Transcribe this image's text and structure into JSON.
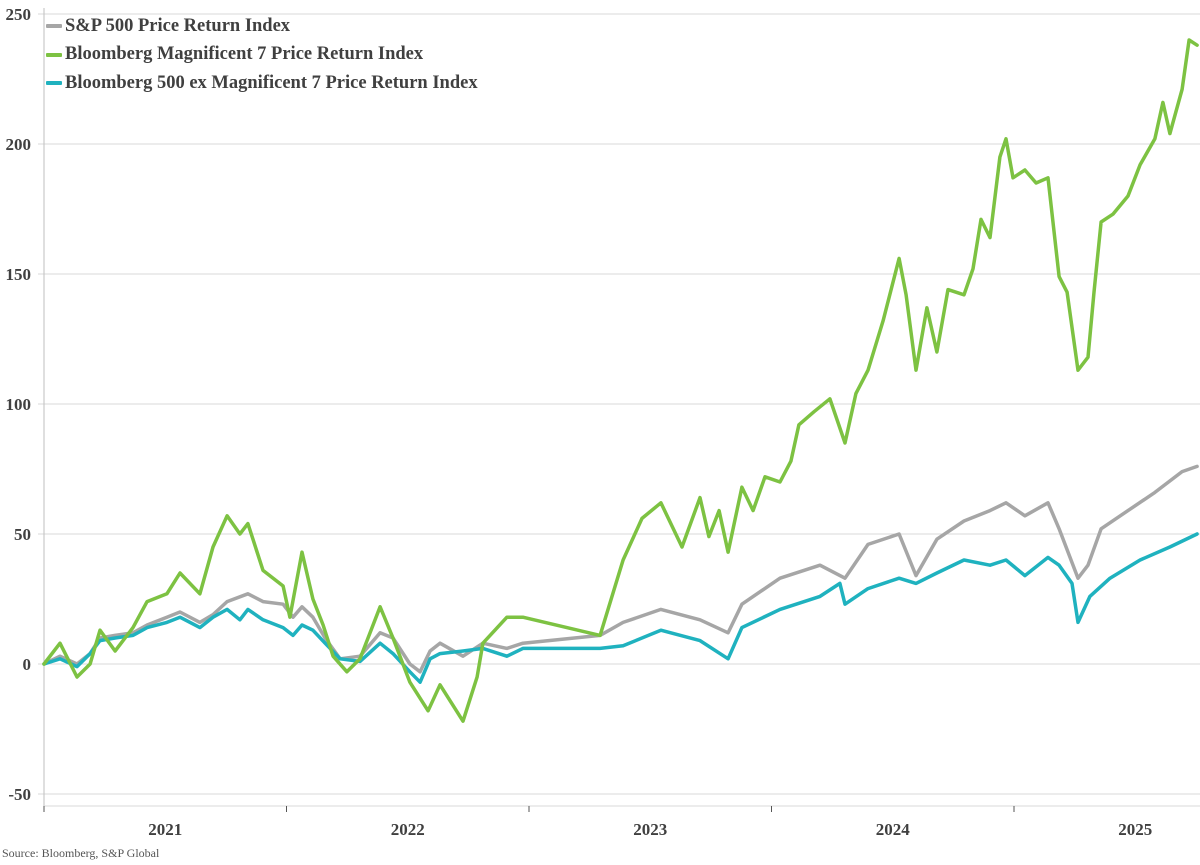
{
  "chart_data": {
    "type": "line",
    "title": "",
    "xlabel": "",
    "ylabel": "",
    "xlim": [
      2021.0,
      2025.78
    ],
    "ylim": [
      -50,
      250
    ],
    "yticks": [
      -50,
      0,
      50,
      100,
      150,
      200,
      250
    ],
    "xticks": [
      2021,
      2022,
      2023,
      2024,
      2025,
      2026
    ],
    "xtick_labels": [
      "2021",
      "2022",
      "2023",
      "2024",
      "2025"
    ],
    "ytick_labels": [
      "-50",
      "0",
      "50",
      "100",
      "150",
      "200",
      "250"
    ],
    "grid": "horizontal",
    "legend_position": "top-left",
    "series": [
      {
        "name": "S&P 500 Price Return Index",
        "color": "#a6a6a6",
        "points": [
          [
            2021.0,
            0
          ],
          [
            2021.066,
            3
          ],
          [
            2021.136,
            0
          ],
          [
            2021.19,
            4
          ],
          [
            2021.231,
            10
          ],
          [
            2021.293,
            11
          ],
          [
            2021.367,
            12
          ],
          [
            2021.425,
            15
          ],
          [
            2021.507,
            18
          ],
          [
            2021.561,
            20
          ],
          [
            2021.643,
            16
          ],
          [
            2021.697,
            19
          ],
          [
            2021.755,
            24
          ],
          [
            2021.841,
            27
          ],
          [
            2021.903,
            24
          ],
          [
            2021.986,
            23
          ],
          [
            2022.027,
            18
          ],
          [
            2022.064,
            22
          ],
          [
            2022.109,
            18
          ],
          [
            2022.159,
            10
          ],
          [
            2022.221,
            2
          ],
          [
            2022.303,
            3
          ],
          [
            2022.386,
            12
          ],
          [
            2022.439,
            10
          ],
          [
            2022.509,
            0
          ],
          [
            2022.551,
            -3
          ],
          [
            2022.592,
            5
          ],
          [
            2022.633,
            8
          ],
          [
            2022.728,
            3
          ],
          [
            2022.81,
            8
          ],
          [
            2022.909,
            6
          ],
          [
            2022.975,
            8
          ],
          [
            2023.293,
            11
          ],
          [
            2023.388,
            16
          ],
          [
            2023.544,
            21
          ],
          [
            2023.705,
            17
          ],
          [
            2023.821,
            12
          ],
          [
            2023.878,
            23
          ],
          [
            2024.035,
            33
          ],
          [
            2024.2,
            38
          ],
          [
            2024.303,
            33
          ],
          [
            2024.398,
            46
          ],
          [
            2024.526,
            50
          ],
          [
            2024.596,
            34
          ],
          [
            2024.682,
            48
          ],
          [
            2024.794,
            55
          ],
          [
            2024.901,
            59
          ],
          [
            2024.967,
            62
          ],
          [
            2025.045,
            57
          ],
          [
            2025.14,
            62
          ],
          [
            2025.186,
            52
          ],
          [
            2025.264,
            33
          ],
          [
            2025.305,
            38
          ],
          [
            2025.359,
            52
          ],
          [
            2025.47,
            59
          ],
          [
            2025.581,
            66
          ],
          [
            2025.693,
            74
          ],
          [
            2025.755,
            76
          ]
        ]
      },
      {
        "name": "Bloomberg Magnificent 7 Price Return Index",
        "color": "#7dc242",
        "points": [
          [
            2021.0,
            0
          ],
          [
            2021.066,
            8
          ],
          [
            2021.136,
            -5
          ],
          [
            2021.19,
            0
          ],
          [
            2021.231,
            13
          ],
          [
            2021.293,
            5
          ],
          [
            2021.367,
            14
          ],
          [
            2021.425,
            24
          ],
          [
            2021.507,
            27
          ],
          [
            2021.561,
            35
          ],
          [
            2021.643,
            27
          ],
          [
            2021.697,
            45
          ],
          [
            2021.755,
            57
          ],
          [
            2021.808,
            50
          ],
          [
            2021.841,
            54
          ],
          [
            2021.903,
            36
          ],
          [
            2021.986,
            30
          ],
          [
            2022.014,
            18
          ],
          [
            2022.064,
            43
          ],
          [
            2022.109,
            25
          ],
          [
            2022.151,
            15
          ],
          [
            2022.192,
            3
          ],
          [
            2022.249,
            -3
          ],
          [
            2022.303,
            2
          ],
          [
            2022.386,
            22
          ],
          [
            2022.439,
            10
          ],
          [
            2022.509,
            -7
          ],
          [
            2022.584,
            -18
          ],
          [
            2022.633,
            -8
          ],
          [
            2022.728,
            -22
          ],
          [
            2022.786,
            -5
          ],
          [
            2022.81,
            8
          ],
          [
            2022.909,
            18
          ],
          [
            2022.975,
            18
          ],
          [
            2023.293,
            11
          ],
          [
            2023.388,
            40
          ],
          [
            2023.466,
            56
          ],
          [
            2023.544,
            62
          ],
          [
            2023.631,
            45
          ],
          [
            2023.705,
            64
          ],
          [
            2023.742,
            49
          ],
          [
            2023.784,
            59
          ],
          [
            2023.821,
            43
          ],
          [
            2023.878,
            68
          ],
          [
            2023.924,
            59
          ],
          [
            2023.973,
            72
          ],
          [
            2024.035,
            70
          ],
          [
            2024.08,
            78
          ],
          [
            2024.113,
            92
          ],
          [
            2024.175,
            97
          ],
          [
            2024.241,
            102
          ],
          [
            2024.303,
            85
          ],
          [
            2024.348,
            104
          ],
          [
            2024.398,
            113
          ],
          [
            2024.46,
            132
          ],
          [
            2024.526,
            156
          ],
          [
            2024.555,
            142
          ],
          [
            2024.596,
            113
          ],
          [
            2024.641,
            137
          ],
          [
            2024.682,
            120
          ],
          [
            2024.728,
            144
          ],
          [
            2024.794,
            142
          ],
          [
            2024.831,
            152
          ],
          [
            2024.864,
            171
          ],
          [
            2024.901,
            164
          ],
          [
            2024.942,
            195
          ],
          [
            2024.967,
            202
          ],
          [
            2024.996,
            187
          ],
          [
            2025.045,
            190
          ],
          [
            2025.091,
            185
          ],
          [
            2025.14,
            187
          ],
          [
            2025.186,
            149
          ],
          [
            2025.219,
            143
          ],
          [
            2025.264,
            113
          ],
          [
            2025.305,
            118
          ],
          [
            2025.33,
            143
          ],
          [
            2025.359,
            170
          ],
          [
            2025.408,
            173
          ],
          [
            2025.47,
            180
          ],
          [
            2025.52,
            192
          ],
          [
            2025.581,
            202
          ],
          [
            2025.614,
            216
          ],
          [
            2025.643,
            204
          ],
          [
            2025.693,
            221
          ],
          [
            2025.722,
            240
          ],
          [
            2025.755,
            238
          ]
        ]
      },
      {
        "name": "Bloomberg 500 ex Magnificent 7 Price Return Index",
        "color": "#1fb2bf",
        "points": [
          [
            2021.0,
            0
          ],
          [
            2021.066,
            2
          ],
          [
            2021.136,
            -1
          ],
          [
            2021.19,
            4
          ],
          [
            2021.231,
            9
          ],
          [
            2021.293,
            10
          ],
          [
            2021.367,
            11
          ],
          [
            2021.425,
            14
          ],
          [
            2021.507,
            16
          ],
          [
            2021.561,
            18
          ],
          [
            2021.643,
            14
          ],
          [
            2021.697,
            18
          ],
          [
            2021.755,
            21
          ],
          [
            2021.808,
            17
          ],
          [
            2021.841,
            21
          ],
          [
            2021.903,
            17
          ],
          [
            2021.986,
            14
          ],
          [
            2022.027,
            11
          ],
          [
            2022.064,
            15
          ],
          [
            2022.109,
            13
          ],
          [
            2022.159,
            8
          ],
          [
            2022.221,
            2
          ],
          [
            2022.303,
            1
          ],
          [
            2022.386,
            8
          ],
          [
            2022.439,
            4
          ],
          [
            2022.509,
            -3
          ],
          [
            2022.551,
            -7
          ],
          [
            2022.592,
            2
          ],
          [
            2022.633,
            4
          ],
          [
            2022.728,
            5
          ],
          [
            2022.81,
            6
          ],
          [
            2022.909,
            3
          ],
          [
            2022.975,
            6
          ],
          [
            2023.293,
            6
          ],
          [
            2023.388,
            7
          ],
          [
            2023.544,
            13
          ],
          [
            2023.705,
            9
          ],
          [
            2023.821,
            2
          ],
          [
            2023.878,
            14
          ],
          [
            2024.035,
            21
          ],
          [
            2024.2,
            26
          ],
          [
            2024.282,
            31
          ],
          [
            2024.303,
            23
          ],
          [
            2024.398,
            29
          ],
          [
            2024.526,
            33
          ],
          [
            2024.596,
            31
          ],
          [
            2024.682,
            35
          ],
          [
            2024.794,
            40
          ],
          [
            2024.901,
            38
          ],
          [
            2024.967,
            40
          ],
          [
            2025.045,
            34
          ],
          [
            2025.14,
            41
          ],
          [
            2025.186,
            38
          ],
          [
            2025.239,
            31
          ],
          [
            2025.264,
            16
          ],
          [
            2025.313,
            26
          ],
          [
            2025.396,
            33
          ],
          [
            2025.52,
            40
          ],
          [
            2025.643,
            45
          ],
          [
            2025.755,
            50
          ]
        ]
      }
    ],
    "source": "Source: Bloomberg, S&P Global"
  }
}
